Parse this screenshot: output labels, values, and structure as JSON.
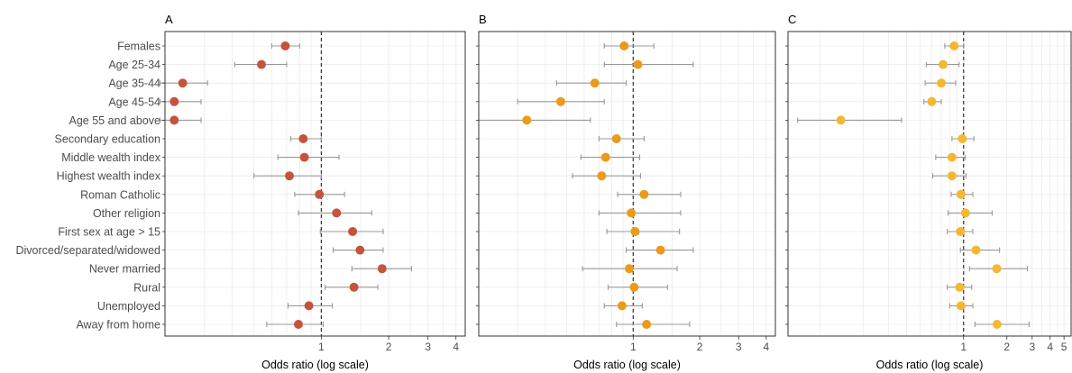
{
  "colors": {
    "A": "#c5543c",
    "B": "#ec9a1a",
    "C": "#f5b731",
    "whisker": "#999999",
    "grid": "#ebebeb",
    "frame": "#333333",
    "refline": "#333333"
  },
  "chart_data": {
    "type": "forest",
    "scale": "log",
    "reference_line": 1,
    "row_labels": [
      "Females",
      "Age 25-34",
      "Age 35-44",
      "Age 45-54",
      "Age 55 and above",
      "Secondary education",
      "Middle wealth index",
      "Highest wealth index",
      "Roman Catholic",
      "Other religion",
      "First sex at age > 15",
      "Divorced/separated/widowed",
      "Never married",
      "Rural",
      "Unemployed",
      "Away from home"
    ],
    "panels": [
      {
        "label": "A",
        "xlabel": "Odds ratio (log scale)",
        "xlim": [
          0.2,
          4.4
        ],
        "ticks": [
          {
            "v": 1,
            "t": "1"
          },
          {
            "v": 2,
            "t": "2"
          },
          {
            "v": 3,
            "t": "3"
          },
          {
            "v": 4,
            "t": "4"
          }
        ],
        "or": [
          0.69,
          0.54,
          0.24,
          0.22,
          0.22,
          0.83,
          0.84,
          0.72,
          0.98,
          1.17,
          1.38,
          1.49,
          1.87,
          1.4,
          0.88,
          0.79
        ],
        "lo": [
          0.6,
          0.41,
          0.19,
          0.19,
          0.19,
          0.73,
          0.64,
          0.5,
          0.76,
          0.79,
          0.99,
          1.13,
          1.37,
          1.04,
          0.71,
          0.57
        ],
        "hi": [
          0.8,
          0.7,
          0.31,
          0.29,
          0.29,
          1.0,
          1.2,
          1.0,
          1.27,
          1.68,
          1.89,
          1.89,
          2.53,
          1.79,
          1.12,
          1.02
        ]
      },
      {
        "label": "B",
        "xlabel": "Odds ratio (log scale)",
        "xlim": [
          0.2,
          4.4
        ],
        "ticks": [
          {
            "v": 1,
            "t": "1"
          },
          {
            "v": 2,
            "t": "2"
          },
          {
            "v": 3,
            "t": "3"
          },
          {
            "v": 4,
            "t": "4"
          }
        ],
        "or": [
          0.91,
          1.05,
          0.67,
          0.47,
          0.33,
          0.84,
          0.75,
          0.72,
          1.12,
          0.98,
          1.02,
          1.33,
          0.96,
          1.01,
          0.89,
          1.15
        ],
        "lo": [
          0.74,
          0.74,
          0.45,
          0.3,
          0.2,
          0.7,
          0.58,
          0.53,
          0.85,
          0.7,
          0.76,
          0.93,
          0.59,
          0.77,
          0.74,
          0.84
        ],
        "hi": [
          1.24,
          1.87,
          0.93,
          0.74,
          0.64,
          1.12,
          1.07,
          1.08,
          1.64,
          1.64,
          1.62,
          1.87,
          1.58,
          1.43,
          1.1,
          1.8
        ]
      },
      {
        "label": "C",
        "xlabel": "Odds ratio (log scale)",
        "xlim": [
          0.06,
          5.6
        ],
        "ticks": [
          {
            "v": 1,
            "t": "1"
          },
          {
            "v": 2,
            "t": "2"
          },
          {
            "v": 3,
            "t": "3"
          },
          {
            "v": 4,
            "t": "4"
          },
          {
            "v": 5,
            "t": "5"
          }
        ],
        "or": [
          0.86,
          0.72,
          0.7,
          0.6,
          0.14,
          0.98,
          0.83,
          0.83,
          0.96,
          1.03,
          0.95,
          1.22,
          1.7,
          0.94,
          0.96,
          1.71
        ],
        "lo": [
          0.74,
          0.55,
          0.54,
          0.53,
          0.07,
          0.83,
          0.64,
          0.61,
          0.82,
          0.78,
          0.77,
          0.95,
          1.1,
          0.77,
          0.8,
          1.2
        ],
        "hi": [
          1.0,
          0.93,
          0.88,
          0.7,
          0.37,
          1.18,
          1.03,
          1.04,
          1.16,
          1.58,
          1.16,
          1.78,
          2.78,
          1.14,
          1.16,
          2.86
        ]
      }
    ]
  }
}
